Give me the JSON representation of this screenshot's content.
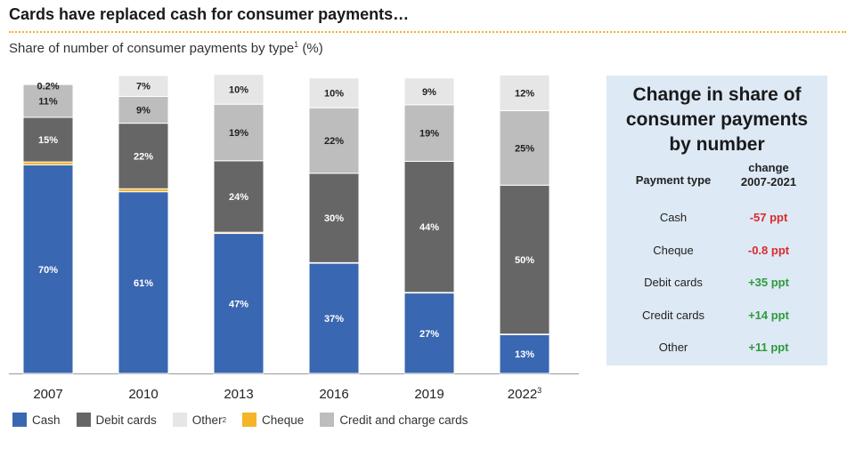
{
  "title": "Cards have replaced cash for consumer payments…",
  "subtitle": "Share of number of consumer payments by type",
  "subtitle_sup": "1",
  "subtitle_unit": " (%)",
  "colors": {
    "Cash": "#3a67b1",
    "Cheque": "#f5b528",
    "Debit cards": "#666666",
    "Credit and charge cards": "#bdbdbd",
    "Other": "#e6e6e6"
  },
  "chart_data": {
    "type": "bar",
    "stacked": true,
    "categories": [
      "2007",
      "2010",
      "2013",
      "2016",
      "2019",
      "2022"
    ],
    "category_sups": [
      "",
      "",
      "",
      "",
      "",
      "3"
    ],
    "ylim": [
      0,
      100
    ],
    "series": [
      {
        "name": "Cash",
        "values": [
          70,
          61,
          47,
          37,
          27,
          13
        ],
        "labels": [
          "70%",
          "61%",
          "47%",
          "37%",
          "27%",
          "13%"
        ],
        "label_color": "#ffffff"
      },
      {
        "name": "Cheque",
        "values": [
          1,
          1,
          0.4,
          0.2,
          0.2,
          0.2
        ],
        "labels": [
          "1%",
          "1%",
          "0.4%",
          "0.2%",
          "0.2%",
          "0.2%"
        ],
        "label_color": "#ffffff"
      },
      {
        "name": "Debit cards",
        "values": [
          15,
          22,
          24,
          30,
          44,
          50
        ],
        "labels": [
          "15%",
          "22%",
          "24%",
          "30%",
          "44%",
          "50%"
        ],
        "label_color": "#ffffff"
      },
      {
        "name": "Credit and charge cards",
        "values": [
          11,
          9,
          19,
          22,
          19,
          25
        ],
        "labels": [
          "11%",
          "9%",
          "19%",
          "22%",
          "19%",
          "25%"
        ],
        "label_color": "#222222"
      },
      {
        "name": "Other",
        "values": [
          0.2,
          7,
          10,
          10,
          9,
          12
        ],
        "labels": [
          "0.2%",
          "7%",
          "10%",
          "10%",
          "9%",
          "12%"
        ],
        "label_color": "#222222"
      }
    ]
  },
  "legend": [
    {
      "name": "Cash",
      "sup": ""
    },
    {
      "name": "Debit cards",
      "sup": ""
    },
    {
      "name": "Other",
      "sup": "2"
    },
    {
      "name": "Cheque",
      "sup": ""
    },
    {
      "name": "Credit and charge cards",
      "sup": ""
    }
  ],
  "panel": {
    "title_lines": [
      "Change in share of",
      "consumer payments",
      "by number"
    ],
    "col1_header": "Payment type",
    "col2_header_lines": [
      "change",
      "2007-2021"
    ],
    "rows": [
      {
        "type": "Cash",
        "change": "-57 ppt",
        "sign": "neg"
      },
      {
        "type": "Cheque",
        "change": "-0.8 ppt",
        "sign": "neg"
      },
      {
        "type": "Debit cards",
        "change": "+35 ppt",
        "sign": "pos"
      },
      {
        "type": "Credit cards",
        "change": "+14 ppt",
        "sign": "pos"
      },
      {
        "type": "Other",
        "change": "+11 ppt",
        "sign": "pos"
      }
    ]
  }
}
